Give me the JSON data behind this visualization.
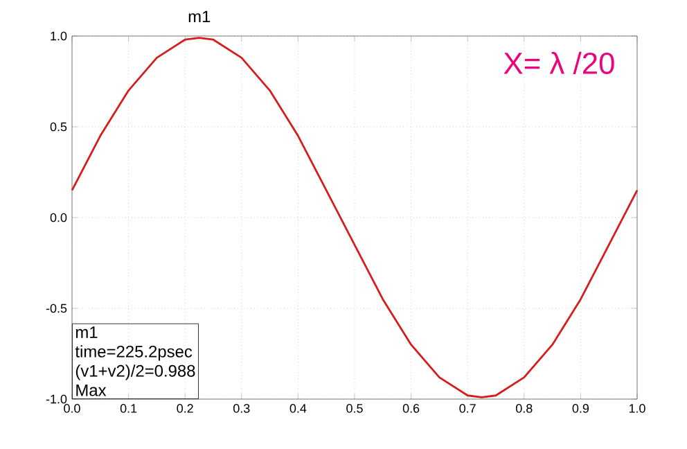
{
  "chart_data": {
    "type": "line",
    "x": [
      0,
      0.05,
      0.1,
      0.15,
      0.2,
      0.225,
      0.25,
      0.3,
      0.35,
      0.4,
      0.45,
      0.5,
      0.55,
      0.6,
      0.65,
      0.7,
      0.725,
      0.75,
      0.8,
      0.85,
      0.9,
      0.95,
      1.0
    ],
    "series": [
      {
        "color": "#d81c1c",
        "values": [
          0.15,
          0.45,
          0.7,
          0.88,
          0.98,
          0.99,
          0.98,
          0.88,
          0.7,
          0.45,
          0.15,
          -0.15,
          -0.45,
          -0.7,
          -0.88,
          -0.98,
          -0.99,
          -0.98,
          -0.88,
          -0.7,
          -0.45,
          -0.15,
          0.15
        ]
      }
    ],
    "xlim": [
      0,
      1
    ],
    "xticks": [
      {
        "value": 0,
        "label": "0.0"
      },
      0.1,
      0.2,
      0.3,
      0.4,
      0.5,
      0.6,
      0.7,
      0.8,
      0.9,
      {
        "value": 1,
        "label": "1.0"
      }
    ],
    "ylim": [
      -1,
      1
    ],
    "yticks": [
      {
        "value": -1,
        "label": "-1.0"
      },
      -0.5,
      {
        "value": 0,
        "label": "0.0"
      },
      0.5,
      {
        "value": 1,
        "label": "1.0"
      }
    ],
    "grid": true,
    "line_style": "solid",
    "marker": "none",
    "annotations": [
      {
        "text": "m1",
        "x": 0.2252,
        "y": 0.988
      },
      "m1",
      "time=225.2psec",
      "(v1+v2)/2=0.988",
      "Max",
      "X= λ /20"
    ]
  }
}
